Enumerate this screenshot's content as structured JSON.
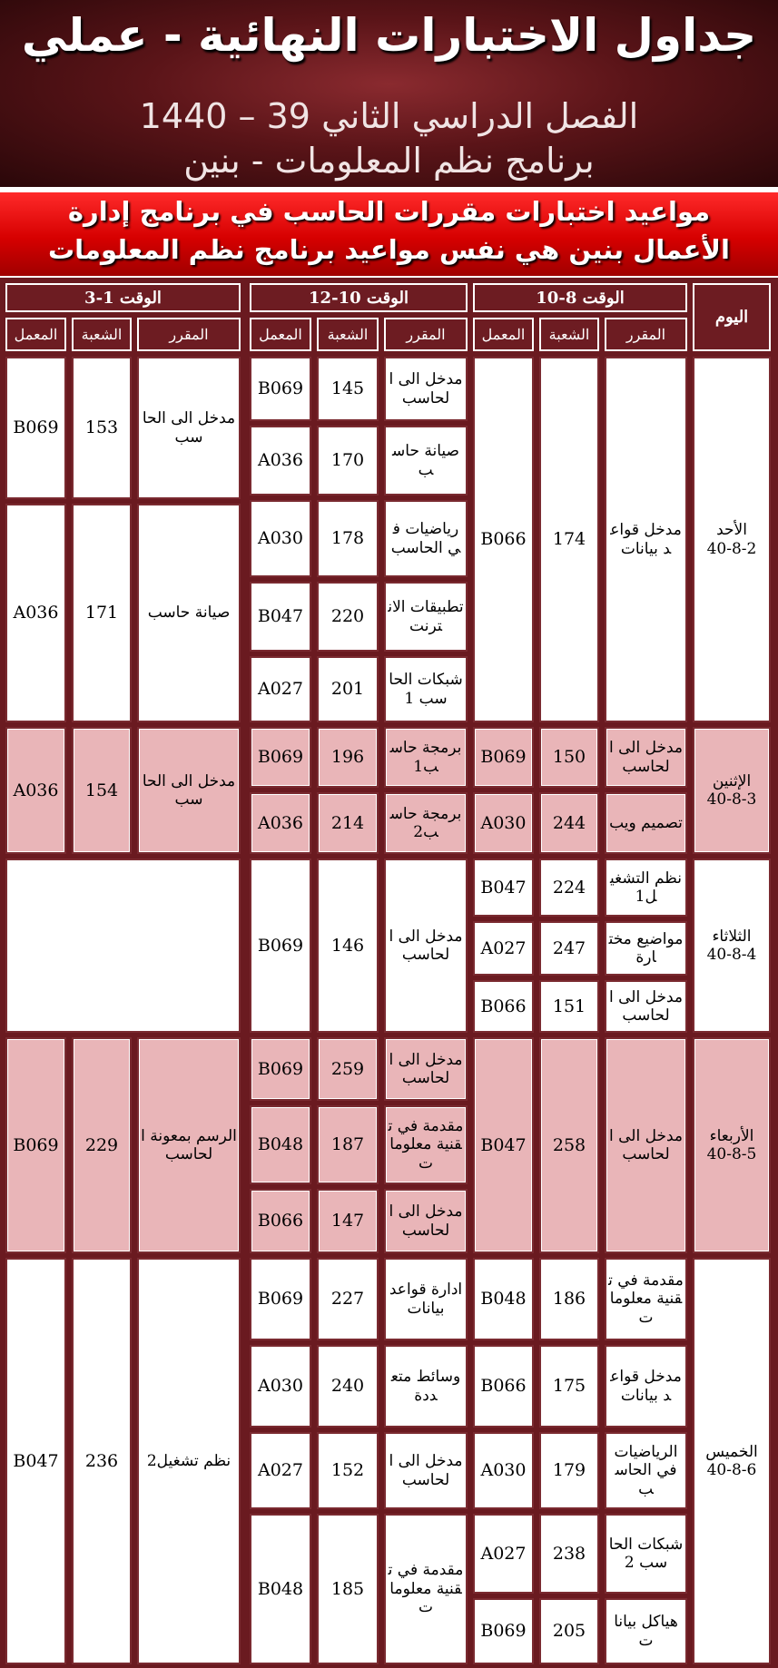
{
  "header": {
    "title": "جداول الاختبارات النهائية - عملي",
    "semester": "الفصل الدراسي الثاني 39 – 1440",
    "program": "برنامج نظم المعلومات - بنين"
  },
  "notice": {
    "line1": "مواعيد اختبارات مقررات الحاسب في برنامج إدارة",
    "line2": "الأعمال بنين هي نفس مواعيد برنامج نظم المعلومات"
  },
  "table_header": {
    "day": "اليوم",
    "slot1": "الوقت 8-10",
    "slot2": "الوقت 10-12",
    "slot3": "الوقت 1-3",
    "course": "المقرر",
    "section": "الشعبة",
    "lab": "المعمل"
  },
  "days": [
    {
      "day": "الأحد\n40-8-2",
      "slot1": [
        {
          "course": "مدخل قواعد بيانات",
          "section": "174",
          "lab": "B066"
        }
      ],
      "slot2": [
        {
          "course": "مدخل الى الحاسب",
          "section": "145",
          "lab": "B069"
        },
        {
          "course": "صيانة حاسب",
          "section": "170",
          "lab": "A036"
        },
        {
          "course": "رياضيات في الحاسب",
          "section": "178",
          "lab": "A030"
        },
        {
          "course": "تطبيقات الانترنت",
          "section": "220",
          "lab": "B047"
        },
        {
          "course": "شبكات الحاسب 1",
          "section": "201",
          "lab": "A027"
        }
      ],
      "slot3": [
        {
          "course": "مدخل الى الحاسب",
          "section": "153",
          "lab": "B069"
        },
        {
          "course": "صيانة حاسب",
          "section": "171",
          "lab": "A036"
        }
      ]
    },
    {
      "day": "الإثنين\n40-8-3",
      "slot1": [
        {
          "course": "مدخل الى الحاسب",
          "section": "150",
          "lab": "B069"
        },
        {
          "course": "تصميم ويب",
          "section": "244",
          "lab": "A030"
        }
      ],
      "slot2": [
        {
          "course": "برمجة حاسب1",
          "section": "196",
          "lab": "B069"
        },
        {
          "course": "برمجة حاسب2",
          "section": "214",
          "lab": "A036"
        }
      ],
      "slot3": [
        {
          "course": "مدخل الى الحاسب",
          "section": "154",
          "lab": "A036"
        }
      ]
    },
    {
      "day": "الثلاثاء\n40-8-4",
      "slot1": [
        {
          "course": "نظم التشغيل1",
          "section": "224",
          "lab": "B047"
        },
        {
          "course": "مواضيع مختارة",
          "section": "247",
          "lab": "A027"
        },
        {
          "course": "مدخل الى الحاسب",
          "section": "151",
          "lab": "B066"
        }
      ],
      "slot2": [
        {
          "course": "مدخل الى الحاسب",
          "section": "146",
          "lab": "B069"
        }
      ],
      "slot3": []
    },
    {
      "day": "الأربعاء\n40-8-5",
      "slot1": [
        {
          "course": "مدخل الى الحاسب",
          "section": "258",
          "lab": "B047"
        }
      ],
      "slot2": [
        {
          "course": "مدخل الى الحاسب",
          "section": "259",
          "lab": "B069"
        },
        {
          "course": "مقدمة في تقنية معلومات",
          "section": "187",
          "lab": "B048"
        },
        {
          "course": "مدخل الى الحاسب",
          "section": "147",
          "lab": "B066"
        }
      ],
      "slot3": [
        {
          "course": "الرسم بمعونة الحاسب",
          "section": "229",
          "lab": "B069"
        }
      ]
    },
    {
      "day": "الخميس\n40-8-6",
      "slot1": [
        {
          "course": "مقدمة في تقنية معلومات",
          "section": "186",
          "lab": "B048"
        },
        {
          "course": "مدخل قواعد بيانات",
          "section": "175",
          "lab": "B066"
        },
        {
          "course": "الرياضيات في الحاسب",
          "section": "179",
          "lab": "A030"
        },
        {
          "course": "شبكات الحاسب 2",
          "section": "238",
          "lab": "A027"
        },
        {
          "course": "هياكل بيانات",
          "section": "205",
          "lab": "B069"
        }
      ],
      "slot2": [
        {
          "course": "ادارة قواعد بيانات",
          "section": "227",
          "lab": "B069"
        },
        {
          "course": "وسائط متعددة",
          "section": "240",
          "lab": "A030"
        },
        {
          "course": "مدخل الى الحاسب",
          "section": "152",
          "lab": "A027"
        },
        {
          "course": "مقدمة في تقنية معلومات",
          "section": "185",
          "lab": "B048"
        }
      ],
      "slot3": [
        {
          "course": "نظم تشغيل2",
          "section": "236",
          "lab": "B047"
        }
      ]
    }
  ],
  "colors": {
    "header_bg": "#5a1418",
    "band_red": "#d60000",
    "table_border": "#6a1a20",
    "row_pink": "#e9b5b8"
  }
}
